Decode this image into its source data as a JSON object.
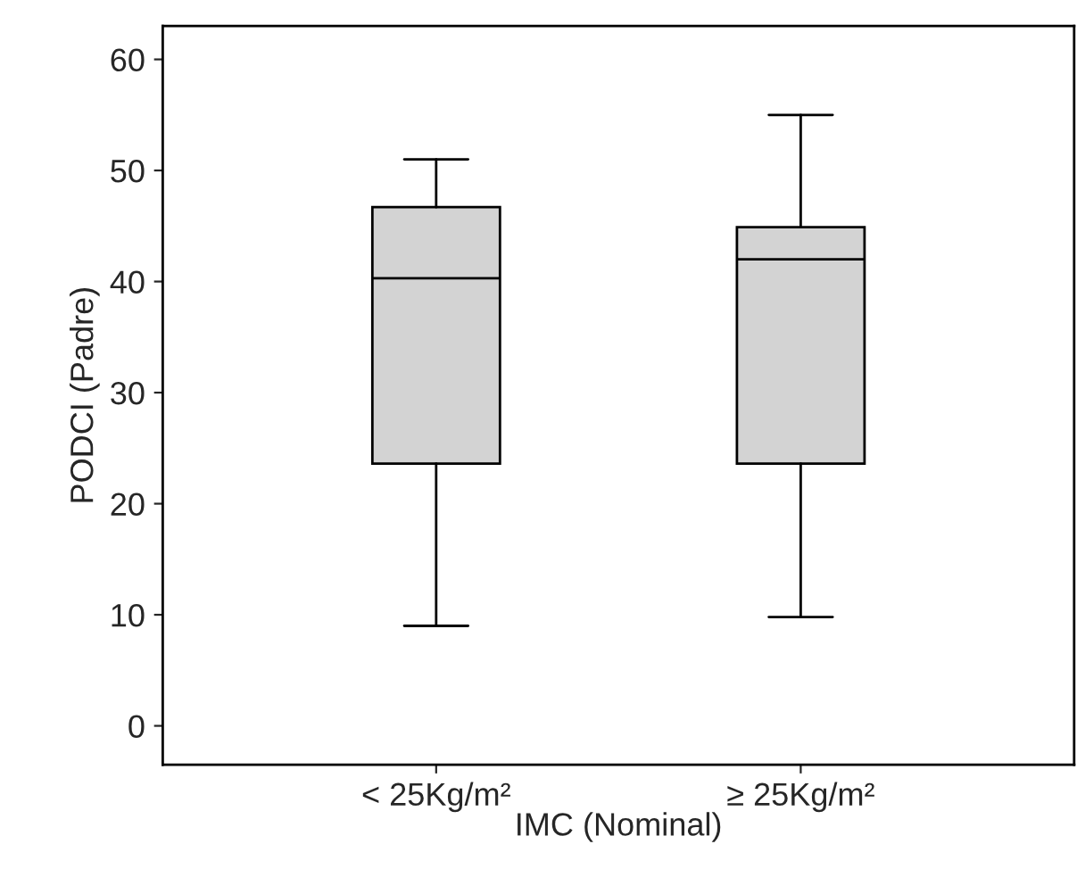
{
  "chart_data": {
    "type": "box",
    "xlabel": "IMC (Nominal)",
    "ylabel": "PODCI (Padre)",
    "categories": [
      "< 25Kg/m²",
      "≥ 25Kg/m²"
    ],
    "boxes": [
      {
        "low": 9,
        "q1": 23.6,
        "median": 40.3,
        "q3": 46.7,
        "high": 51
      },
      {
        "low": 9.8,
        "q1": 23.6,
        "median": 42,
        "q3": 44.9,
        "high": 55
      }
    ],
    "color": "#d3d3d3",
    "ylim": [
      -3.5,
      63
    ],
    "yticks": [
      0,
      10,
      20,
      30,
      40,
      50,
      60
    ],
    "grid": false
  }
}
